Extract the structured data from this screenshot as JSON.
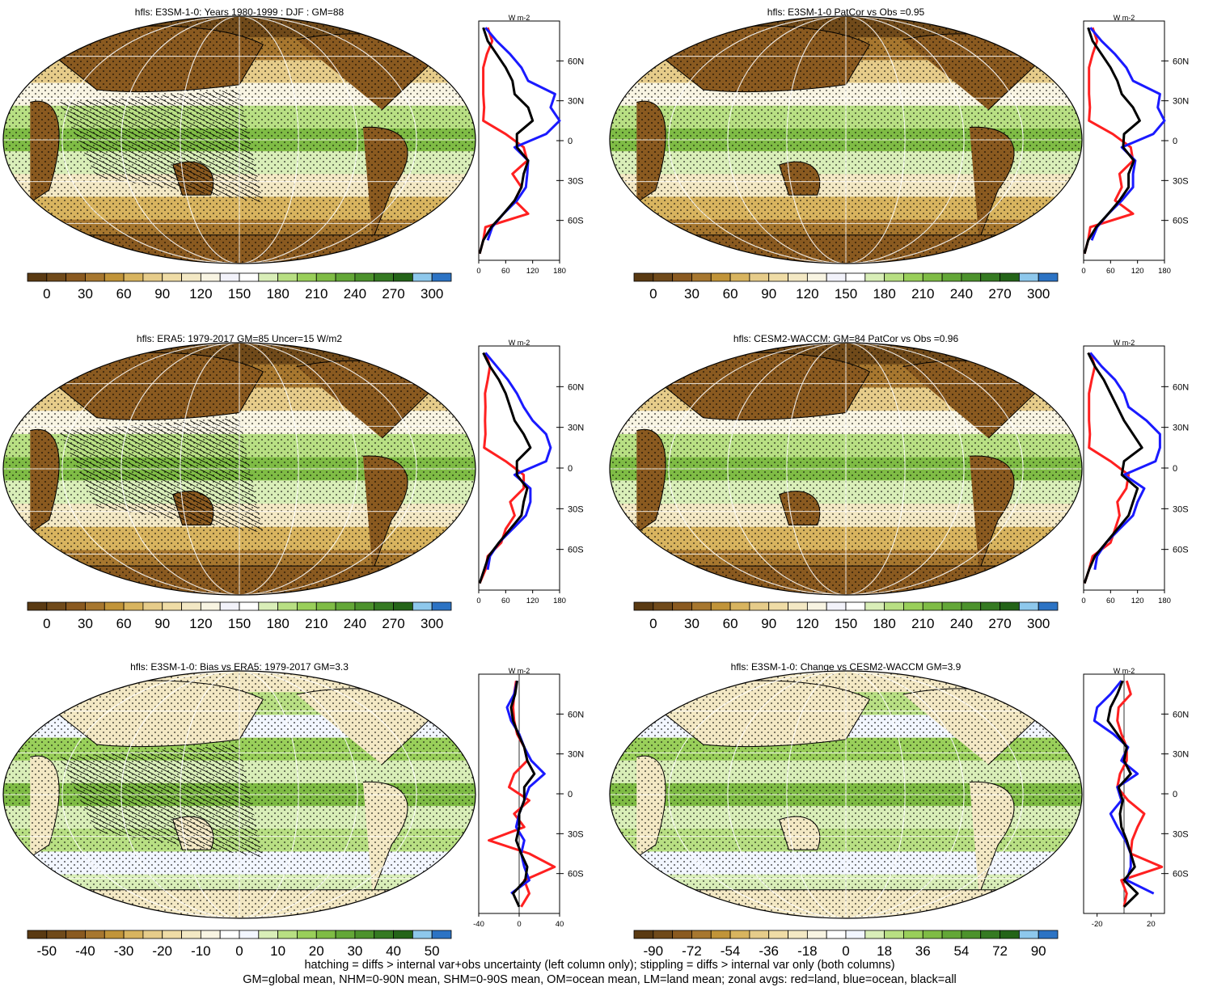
{
  "colors": {
    "land_line": "#ff2020",
    "ocean_line": "#1a1aff",
    "all_line": "#000000",
    "abs_palette": [
      "#5a3a12",
      "#704a1a",
      "#8a5a20",
      "#a7772f",
      "#c19439",
      "#d8b45f",
      "#e6cc8a",
      "#efdca6",
      "#f3e8c4",
      "#f8f4e2",
      "#f2f2fa",
      "#ffffff",
      "#d9eeb8",
      "#b8df83",
      "#99cf5a",
      "#7fbc45",
      "#63a737",
      "#4c922c",
      "#357a22",
      "#246418",
      "#8ec8ec",
      "#2c73c4"
    ],
    "diff_palette": [
      "#5a3a12",
      "#704a1a",
      "#8a5a20",
      "#a7772f",
      "#c19439",
      "#d8b45f",
      "#e6cc8a",
      "#efdca6",
      "#f3e8c4",
      "#f8f4e2",
      "#ffffff",
      "#f2f6ff",
      "#d9eeb8",
      "#b8df83",
      "#99cf5a",
      "#7fbc45",
      "#63a737",
      "#4c922c",
      "#357a22",
      "#246418",
      "#8ec8ec",
      "#2c73c4"
    ]
  },
  "chart_data": [
    {
      "type": "heatmap",
      "title": "hfls: E3SM-1-0: Years 1980-1999 : DJF : GM=88",
      "colorbar_ticks": [
        "0",
        "30",
        "60",
        "90",
        "120",
        "150",
        "180",
        "210",
        "240",
        "270",
        "300"
      ],
      "zonal": {
        "unit": "W m-2",
        "xticks": [
          "0",
          "60",
          "120",
          "180"
        ],
        "xlim": [
          0,
          180
        ],
        "yticks": [
          "60N",
          "30N",
          "0",
          "30S",
          "60S"
        ],
        "ylim": [
          -90,
          90
        ],
        "lat": [
          -85,
          -75,
          -65,
          -55,
          -45,
          -35,
          -25,
          -15,
          -5,
          5,
          15,
          25,
          35,
          45,
          55,
          65,
          75,
          85
        ],
        "series": [
          {
            "key": "land",
            "values": [
              2,
              10,
              15,
              110,
              80,
              95,
              75,
              108,
              100,
              60,
              10,
              12,
              10,
              10,
              10,
              18,
              30,
              20
            ]
          },
          {
            "key": "ocean",
            "values": [
              null,
              20,
              30,
              55,
              85,
              105,
              108,
              110,
              80,
              150,
              180,
              160,
              170,
              110,
              95,
              70,
              40,
              15
            ]
          },
          {
            "key": "all",
            "values": [
              2,
              10,
              28,
              55,
              80,
              95,
              100,
              110,
              85,
              85,
              120,
              110,
              80,
              75,
              60,
              40,
              20,
              10
            ]
          }
        ]
      }
    },
    {
      "type": "heatmap",
      "title": "hfls: E3SM-1-0 PatCor vs Obs =0.95",
      "colorbar_ticks": [
        "0",
        "30",
        "60",
        "90",
        "120",
        "150",
        "180",
        "210",
        "240",
        "270",
        "300"
      ],
      "zonal": {
        "unit": "W m-2",
        "xticks": [
          "0",
          "60",
          "120",
          "180"
        ],
        "xlim": [
          0,
          180
        ],
        "yticks": [
          "60N",
          "30N",
          "0",
          "30S",
          "60S"
        ],
        "ylim": [
          -90,
          90
        ],
        "lat": [
          -85,
          -75,
          -65,
          -55,
          -45,
          -35,
          -25,
          -15,
          -5,
          5,
          15,
          25,
          35,
          45,
          55,
          65,
          75,
          85
        ],
        "series": [
          {
            "key": "land",
            "values": [
              2,
              10,
              15,
              110,
              70,
              85,
              80,
              110,
              105,
              65,
              12,
              14,
              12,
              12,
              12,
              20,
              30,
              20
            ]
          },
          {
            "key": "ocean",
            "values": [
              null,
              18,
              30,
              55,
              85,
              110,
              110,
              115,
              85,
              155,
              180,
              165,
              170,
              110,
              95,
              70,
              40,
              15
            ]
          },
          {
            "key": "all",
            "values": [
              2,
              10,
              28,
              55,
              80,
              100,
              100,
              112,
              88,
              90,
              125,
              110,
              85,
              75,
              60,
              40,
              20,
              10
            ]
          }
        ]
      }
    },
    {
      "type": "heatmap",
      "title": "hfls: ERA5: 1979-2017 GM=85 Uncer=15 W/m2",
      "colorbar_ticks": [
        "0",
        "30",
        "60",
        "90",
        "120",
        "150",
        "180",
        "210",
        "240",
        "270",
        "300"
      ],
      "zonal": {
        "unit": "W m-2",
        "xticks": [
          "0",
          "60",
          "120",
          "180"
        ],
        "xlim": [
          0,
          180
        ],
        "yticks": [
          "60N",
          "30N",
          "0",
          "30S",
          "60S"
        ],
        "ylim": [
          -90,
          90
        ],
        "lat": [
          -85,
          -75,
          -65,
          -55,
          -45,
          -35,
          -25,
          -15,
          -5,
          5,
          15,
          25,
          35,
          45,
          55,
          65,
          75,
          85
        ],
        "series": [
          {
            "key": "land",
            "values": [
              2,
              15,
              20,
              50,
              60,
              80,
              70,
              100,
              100,
              60,
              12,
              15,
              14,
              15,
              14,
              20,
              25,
              15
            ]
          },
          {
            "key": "ocean",
            "values": [
              null,
              20,
              25,
              45,
              75,
              105,
              115,
              115,
              80,
              150,
              160,
              150,
              120,
              100,
              85,
              65,
              40,
              15
            ]
          },
          {
            "key": "all",
            "values": [
              2,
              12,
              22,
              45,
              70,
              95,
              100,
              108,
              85,
              85,
              115,
              100,
              80,
              70,
              60,
              45,
              25,
              10
            ]
          }
        ]
      }
    },
    {
      "type": "heatmap",
      "title": "hfls: CESM2-WACCM: GM=84 PatCor vs Obs =0.96",
      "colorbar_ticks": [
        "0",
        "30",
        "60",
        "90",
        "120",
        "150",
        "180",
        "210",
        "240",
        "270",
        "300"
      ],
      "zonal": {
        "unit": "W m-2",
        "xticks": [
          "0",
          "60",
          "120",
          "180"
        ],
        "xlim": [
          0,
          180
        ],
        "yticks": [
          "60N",
          "30N",
          "0",
          "30S",
          "60S"
        ],
        "ylim": [
          -90,
          90
        ],
        "lat": [
          -85,
          -75,
          -65,
          -55,
          -45,
          -35,
          -25,
          -15,
          -5,
          5,
          15,
          25,
          35,
          45,
          55,
          65,
          75,
          85
        ],
        "series": [
          {
            "key": "land",
            "values": [
              2,
              12,
              20,
              60,
              70,
              80,
              75,
              95,
              100,
              60,
              12,
              14,
              12,
              12,
              12,
              18,
              25,
              15
            ]
          },
          {
            "key": "ocean",
            "values": [
              null,
              25,
              30,
              50,
              80,
              110,
              120,
              135,
              90,
              160,
              170,
              170,
              140,
              100,
              90,
              70,
              40,
              15
            ]
          },
          {
            "key": "all",
            "values": [
              2,
              12,
              25,
              50,
              75,
              100,
              110,
              120,
              85,
              90,
              130,
              110,
              90,
              75,
              60,
              45,
              25,
              10
            ]
          }
        ]
      }
    },
    {
      "type": "heatmap",
      "title": "hfls: E3SM-1-0: Bias vs ERA5: 1979-2017 GM=3.3",
      "colorbar_ticks": [
        "-50",
        "-40",
        "-30",
        "-20",
        "-10",
        "0",
        "10",
        "20",
        "30",
        "40",
        "50"
      ],
      "zonal": {
        "unit": "W m-2",
        "xticks": [
          "-40",
          "0",
          "40"
        ],
        "xlim": [
          -40,
          40
        ],
        "yticks": [
          "60N",
          "30N",
          "0",
          "30S",
          "60S"
        ],
        "ylim": [
          -90,
          90
        ],
        "lat": [
          -85,
          -75,
          -65,
          -55,
          -45,
          -35,
          -25,
          -15,
          -5,
          5,
          15,
          25,
          35,
          45,
          55,
          65,
          75,
          85
        ],
        "series": [
          {
            "key": "land",
            "values": [
              2,
              10,
              5,
              35,
              10,
              -30,
              5,
              -5,
              10,
              -10,
              -5,
              8,
              5,
              -2,
              -5,
              -6,
              -5,
              -3
            ]
          },
          {
            "key": "ocean",
            "values": [
              null,
              -8,
              10,
              5,
              2,
              5,
              -3,
              0,
              5,
              10,
              25,
              12,
              5,
              0,
              -8,
              -12,
              -5,
              -2
            ]
          },
          {
            "key": "all",
            "values": [
              0,
              -6,
              6,
              8,
              2,
              -3,
              0,
              0,
              5,
              5,
              15,
              8,
              5,
              -1,
              -6,
              -8,
              -4,
              -2
            ]
          }
        ]
      }
    },
    {
      "type": "heatmap",
      "title": "hfls: E3SM-1-0: Change vs CESM2-WACCM GM=3.9",
      "colorbar_ticks": [
        "-90",
        "-72",
        "-54",
        "-36",
        "-18",
        "0",
        "18",
        "36",
        "54",
        "72",
        "90"
      ],
      "zonal": {
        "unit": "W m-2",
        "xticks": [
          "-20",
          "20"
        ],
        "xlim": [
          -30,
          30
        ],
        "yticks": [
          "60N",
          "30N",
          "0",
          "30S",
          "60S"
        ],
        "ylim": [
          -90,
          90
        ],
        "lat": [
          -85,
          -75,
          -65,
          -55,
          -45,
          -35,
          -25,
          -15,
          -5,
          5,
          15,
          25,
          35,
          45,
          55,
          65,
          75,
          85
        ],
        "series": [
          {
            "key": "land",
            "values": [
              0,
              2,
              -2,
              28,
              5,
              6,
              10,
              15,
              3,
              -5,
              -3,
              2,
              2,
              -2,
              -5,
              -4,
              5,
              2
            ]
          },
          {
            "key": "ocean",
            "values": [
              null,
              22,
              2,
              5,
              5,
              1,
              -5,
              -10,
              -2,
              -5,
              10,
              -2,
              3,
              -8,
              -22,
              -20,
              -10,
              -2
            ]
          },
          {
            "key": "all",
            "values": [
              0,
              10,
              0,
              8,
              5,
              2,
              -2,
              -3,
              -1,
              -4,
              5,
              0,
              2,
              -5,
              -12,
              -10,
              -5,
              -1
            ]
          }
        ]
      }
    }
  ],
  "footer": {
    "line1": "hatching = diffs > internal var+obs uncertainty (left column only); stippling = diffs > internal var only (both columns)",
    "line2": "GM=global mean, NHM=0-90N mean, SHM=0-90S mean, OM=ocean mean, LM=land mean; zonal avgs: red=land, blue=ocean, black=all"
  }
}
